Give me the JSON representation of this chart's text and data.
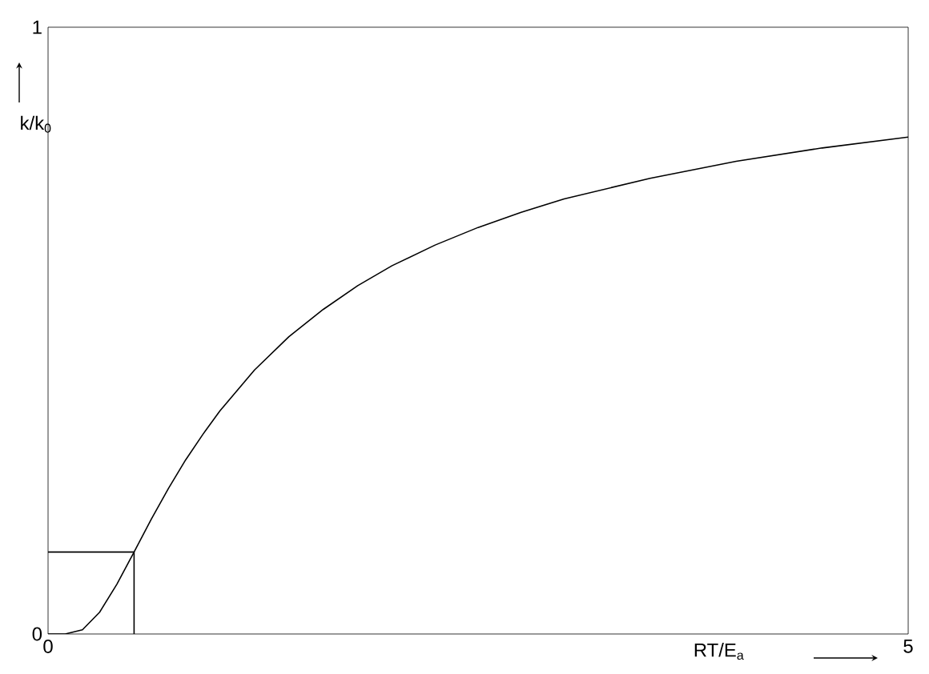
{
  "chart_data": {
    "type": "line",
    "xlabel": "RT/E$_{a}$",
    "ylabel": "k/k$_{0}$",
    "xlim": [
      0,
      5
    ],
    "ylim": [
      0,
      1
    ],
    "xticks": [
      {
        "value": 0,
        "label": "0"
      },
      {
        "value": 5,
        "label": "5"
      }
    ],
    "yticks": [
      {
        "value": 0,
        "label": "0"
      },
      {
        "value": 1,
        "label": "1"
      }
    ],
    "grid": false,
    "marker": "none",
    "line_style": "solid",
    "series": [
      {
        "color": "#000000",
        "x": [
          0,
          0.1,
          0.2,
          0.3,
          0.4,
          0.5,
          0.6,
          0.7,
          0.8,
          0.9,
          1.0,
          1.2,
          1.4,
          1.6,
          1.8,
          2.0,
          2.25,
          2.5,
          2.75,
          3.0,
          3.5,
          4.0,
          4.5,
          5.0
        ],
        "values": [
          0,
          0.0,
          0.007,
          0.036,
          0.082,
          0.135,
          0.189,
          0.24,
          0.287,
          0.329,
          0.368,
          0.435,
          0.49,
          0.535,
          0.574,
          0.607,
          0.641,
          0.67,
          0.695,
          0.717,
          0.751,
          0.779,
          0.801,
          0.819
        ]
      },
      {
        "color": "#000000",
        "x": [
          0,
          0.5,
          0.5
        ],
        "values": [
          0.135,
          0.135,
          0
        ]
      }
    ]
  }
}
